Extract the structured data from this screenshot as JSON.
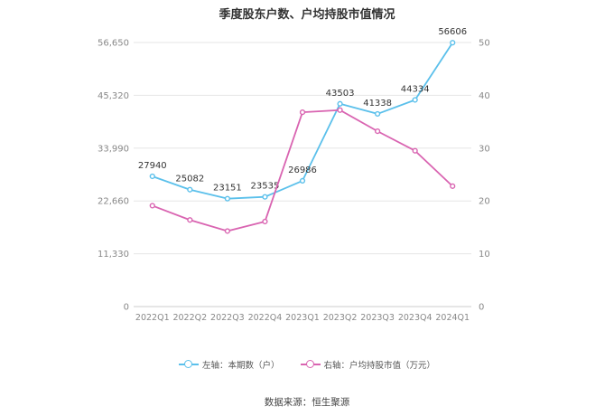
{
  "colors": {
    "left_series": "#5bc0eb",
    "right_series": "#d964b1",
    "grid": "#e6e6e6",
    "axis_text": "#888888"
  },
  "chart_data": {
    "type": "line",
    "title": "季度股东户数、户均持股市值情况",
    "categories": [
      "2022Q1",
      "2022Q2",
      "2022Q3",
      "2022Q4",
      "2023Q1",
      "2023Q2",
      "2023Q3",
      "2023Q4",
      "2024Q1"
    ],
    "left_axis": {
      "ticks": [
        "0",
        "11,330",
        "22,660",
        "33,990",
        "45,320",
        "56,650"
      ],
      "range": [
        0,
        56650
      ]
    },
    "right_axis": {
      "ticks": [
        "0",
        "10",
        "20",
        "30",
        "40",
        "50"
      ],
      "range": [
        0,
        50
      ]
    },
    "series": [
      {
        "name": "左轴：本期数（户）",
        "axis": "left",
        "values": [
          27940,
          25082,
          23151,
          23535,
          26986,
          43503,
          41338,
          44334,
          56606
        ],
        "labels": [
          "27940",
          "25082",
          "23151",
          "23535",
          "26986",
          "43503",
          "41338",
          "44334",
          "56606"
        ]
      },
      {
        "name": "右轴：户均持股市值（万元）",
        "axis": "right",
        "values": [
          19.1,
          16.4,
          14.3,
          16.1,
          36.8,
          37.2,
          33.2,
          29.5,
          22.8
        ]
      }
    ],
    "grid": true,
    "legend": "bottom"
  },
  "footer": {
    "source": "数据来源：恒生聚源"
  }
}
